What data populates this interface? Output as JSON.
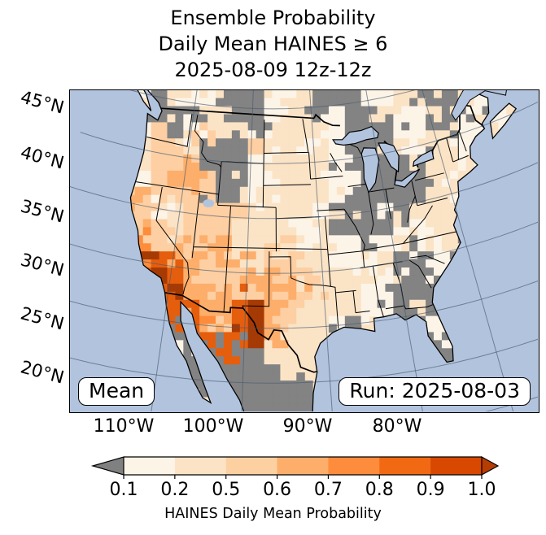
{
  "title": {
    "line1": "Ensemble Probability",
    "line2": "Daily Mean HAINES ≥ 6",
    "line3": "2025-08-09 12z-12z"
  },
  "map": {
    "mean_label": "Mean",
    "run_label": "Run: 2025-08-03"
  },
  "axes": {
    "lat_labels": [
      "45°N",
      "40°N",
      "35°N",
      "30°N",
      "25°N",
      "20°N"
    ],
    "lon_labels": [
      "110°W",
      "100°W",
      "90°W",
      "80°W"
    ]
  },
  "colorbar": {
    "label": "HAINES Daily Mean Probability",
    "ticks": [
      "0.1",
      "0.2",
      "0.5",
      "0.6",
      "0.7",
      "0.8",
      "0.9",
      "1.0"
    ],
    "segment_colors": [
      "#fdf4e8",
      "#fde3c6",
      "#fdd0a2",
      "#fdae6b",
      "#fd8d3c",
      "#f16913",
      "#d94801"
    ],
    "under_arrow_color": "#808080",
    "over_arrow_color": "#b63d02"
  },
  "palette": {
    "g": "#838383",
    "w": "#fdf4e8",
    "c": "#fbe3c6",
    "p": "#fdcfa2",
    "o": "#fdae6b",
    "O": "#fd8c3b",
    "d": "#e55e0d",
    "D": "#a63a04"
  },
  "colors": {
    "ocean": "#b2c3dd",
    "land_base": "#fbe3c6",
    "gridline": "rgba(70,90,110,0.65)",
    "coast": "#000000"
  },
  "grid_rows": [
    "~~~cwgcwwgggwccgggwwccggcw~~~",
    "~~wcpgggccggwccgwggcwwcgg~w~~",
    "~~~~wpgwpccgwcccwgggwwgcwwcc~",
    "~~~~cppcgggpccwcwgggcwccwwcc~",
    "~~~~cppogggwccccwggggccccwwc~",
    "~~~~wpoopggwwcccwwggggcwcccc~",
    "~~~poppppgcwccccwgggggccwcc~~",
    "~~~opwcppppccccwcggwgccccwc~~",
    "~~~Oopcpppccccwccgggwwccccc~~",
    "~~~dOpcpooccpcwcwwgwcgwcccw~~",
    "~~~~Ddoopoocppccwwwcggwwgcw~~",
    "~~~~dDdopppooppccccwcggwggw~~",
    "~~~~gdDoooppoopcccwwgggggww~~",
    "~~~~~gddoodDopccccwwgcggww~~~",
    "~~~~~gddOpdDopccwg~~ggwg~~~~~",
    "~~~~~~ggdgdDoc~~~~~~~~gw~~~~~",
    "~~~~~~wggdggcc~~~~~~~~gg~~~~~",
    "~~~~~~~ggggggc~~~~~~~~~~~~~~~",
    "~~~~~~~~ggggggg~~~~~~~~~~~~~~",
    "~~~~~~~~~gggggg~~~~~~~~~~~~~~"
  ]
}
